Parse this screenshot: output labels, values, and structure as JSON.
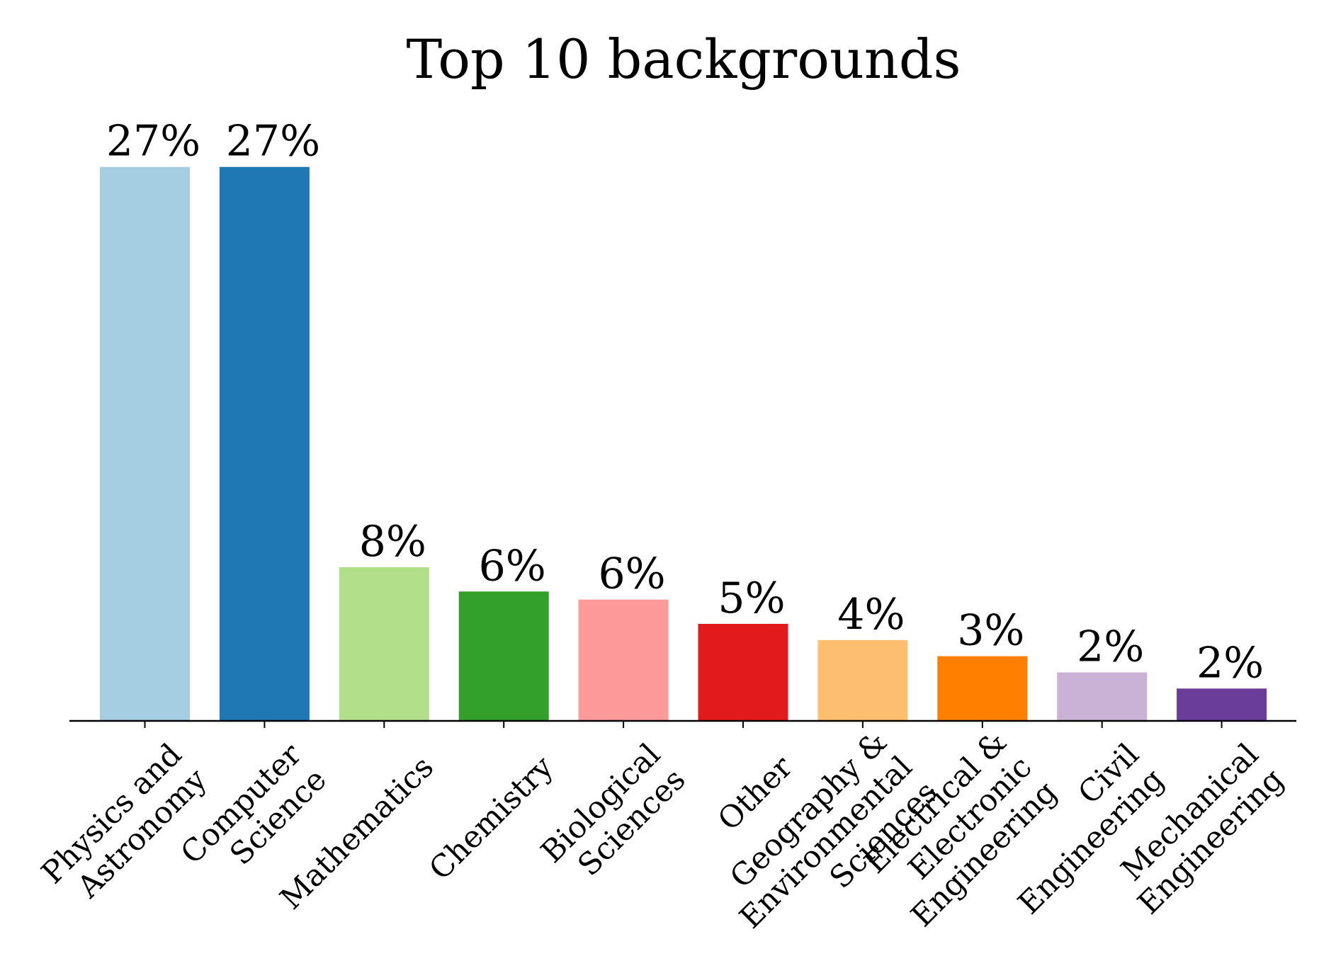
{
  "chart_data": {
    "type": "bar",
    "title": "Top 10 backgrounds",
    "xlabel": "",
    "ylabel": "",
    "ylim": [
      0,
      28
    ],
    "grid": false,
    "categories": [
      [
        "Physics and",
        "Astronomy"
      ],
      [
        "Computer",
        "Science"
      ],
      [
        "Mathematics"
      ],
      [
        "Chemistry"
      ],
      [
        "Biological",
        "Sciences"
      ],
      [
        "Other"
      ],
      [
        "Geography &",
        "Environmental",
        "Sciences"
      ],
      [
        "Electrical &",
        "Electronic",
        "Engineering"
      ],
      [
        "Civil",
        "Engineering"
      ],
      [
        "Mechanical",
        "Engineering"
      ]
    ],
    "values": [
      27.4,
      27.4,
      7.6,
      6.4,
      6.0,
      4.8,
      4.0,
      3.2,
      2.4,
      1.6
    ],
    "data_labels": [
      "27%",
      "27%",
      "8%",
      "6%",
      "6%",
      "5%",
      "4%",
      "3%",
      "2%",
      "2%"
    ],
    "colors": [
      "#a6cee3",
      "#1f78b4",
      "#b2df8a",
      "#33a02c",
      "#fb9a99",
      "#e31a1c",
      "#fdbf6f",
      "#ff7f00",
      "#cab2d6",
      "#6a3d9a"
    ]
  }
}
